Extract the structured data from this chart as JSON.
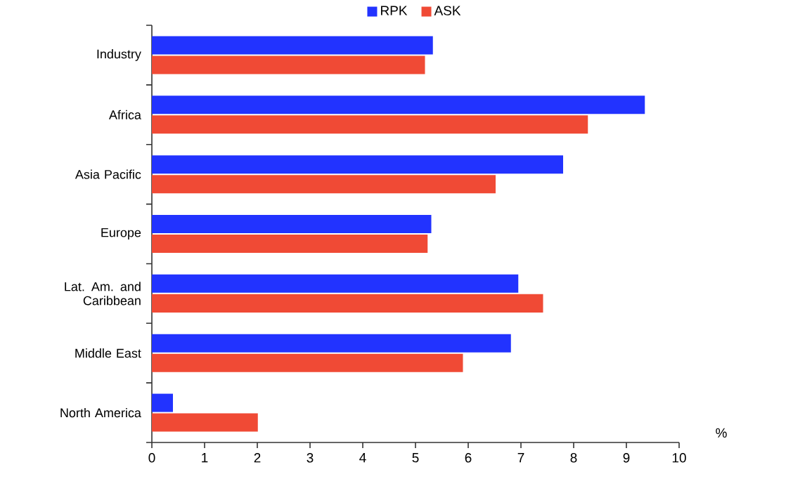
{
  "chart_data": {
    "type": "bar",
    "orientation": "horizontal",
    "xlabel": "%",
    "categories": [
      "Industry",
      "Africa",
      "Asia Pacific",
      "Europe",
      "Lat. Am. and Caribbean",
      "Middle East",
      "North America"
    ],
    "series": [
      {
        "name": "RPK",
        "color": "#2233ff",
        "values": [
          5.33,
          9.35,
          7.8,
          5.3,
          6.95,
          6.81,
          0.4
        ]
      },
      {
        "name": "ASK",
        "color": "#f04a35",
        "values": [
          5.18,
          8.27,
          6.52,
          5.23,
          7.42,
          5.9,
          2.01
        ]
      }
    ],
    "xlim": [
      0,
      10
    ],
    "xticks": [
      0,
      1,
      2,
      3,
      4,
      5,
      6,
      7,
      8,
      9,
      10
    ],
    "legend": "top",
    "grid": false
  }
}
